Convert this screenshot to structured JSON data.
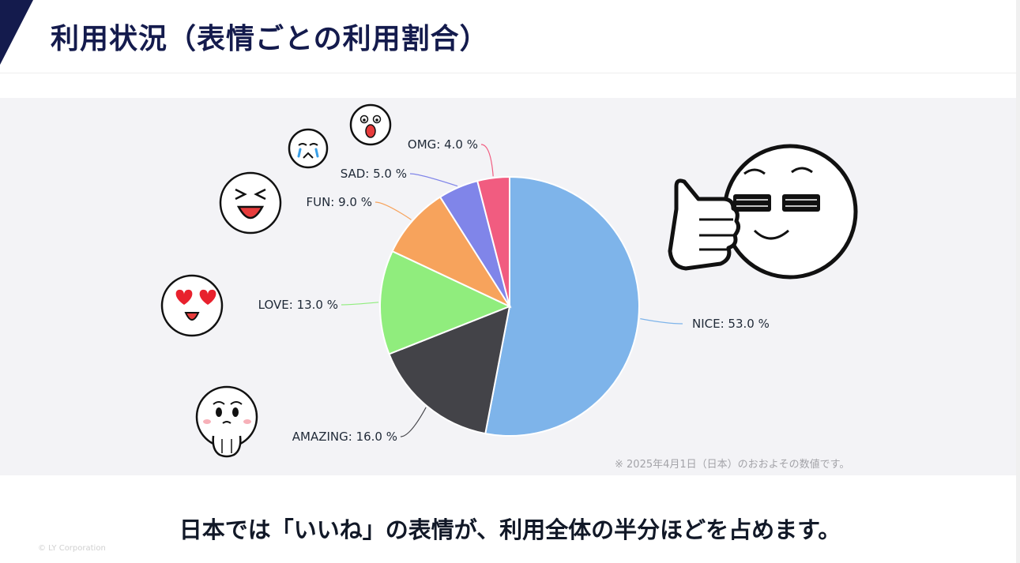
{
  "header": {
    "title": "利用状況（表情ごとの利用割合）"
  },
  "chart_data": {
    "type": "pie",
    "slices": [
      {
        "label": "NICE",
        "value": 53.0,
        "color": "#7eb4ea",
        "icon": "thumbs-up-sunglasses-face-icon"
      },
      {
        "label": "AMAZING",
        "value": 16.0,
        "color": "#434348",
        "icon": "touched-face-icon"
      },
      {
        "label": "LOVE",
        "value": 13.0,
        "color": "#90ed7d",
        "icon": "heart-eyes-face-icon"
      },
      {
        "label": "FUN",
        "value": 9.0,
        "color": "#f7a35c",
        "icon": "laughing-face-icon"
      },
      {
        "label": "SAD",
        "value": 5.0,
        "color": "#8085e9",
        "icon": "crying-face-icon"
      },
      {
        "label": "OMG",
        "value": 4.0,
        "color": "#f15c80",
        "icon": "shocked-face-icon"
      }
    ],
    "label_format": "{label}: {value} %",
    "note": "※ 2025年4月1日（日本）のおおよその数値です。"
  },
  "summary": "日本では「いいね」の表情が、利用全体の半分ほどを占めます。",
  "footer": {
    "copyright": "© LY Corporation"
  }
}
